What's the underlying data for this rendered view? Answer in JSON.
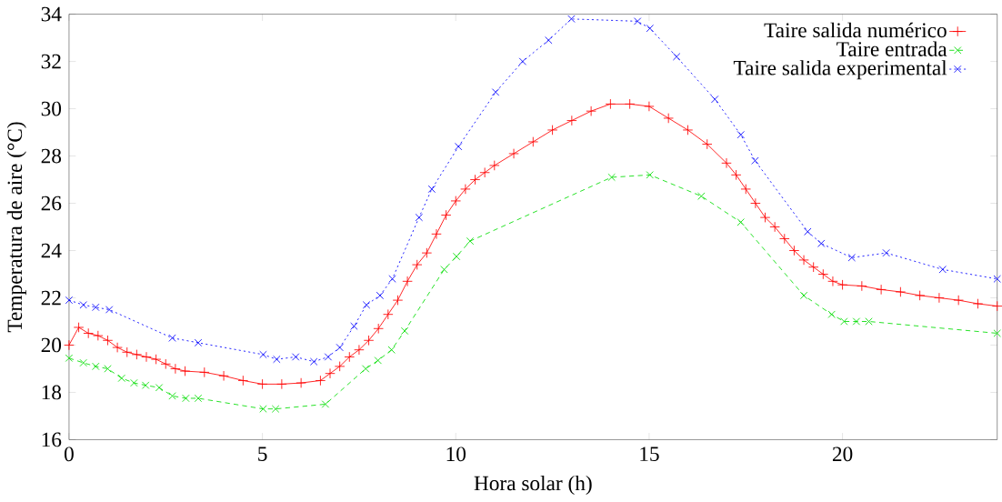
{
  "chart_data": {
    "type": "line",
    "xlabel": "Hora solar (h)",
    "ylabel": "Temperatura de aire (°C)",
    "xlim": [
      0,
      24
    ],
    "ylim": [
      16,
      34
    ],
    "xticks": [
      0,
      5,
      10,
      15,
      20
    ],
    "yticks": [
      16,
      18,
      20,
      22,
      24,
      26,
      28,
      30,
      32,
      34
    ],
    "grid": false,
    "legend": "top right",
    "series": [
      {
        "name": "Taire salida numérico",
        "color": "#ff0000",
        "marker": "plus",
        "line_style": "solid",
        "x": [
          0,
          0.25,
          0.5,
          0.75,
          1.0,
          1.25,
          1.5,
          1.75,
          2.0,
          2.25,
          2.5,
          2.75,
          3.0,
          3.5,
          4.0,
          4.5,
          5.0,
          5.5,
          6.0,
          6.5,
          6.75,
          7.0,
          7.25,
          7.5,
          7.75,
          8.0,
          8.25,
          8.5,
          8.75,
          9.0,
          9.25,
          9.5,
          9.75,
          10.0,
          10.25,
          10.5,
          10.75,
          11.0,
          11.5,
          12.0,
          12.5,
          13.0,
          13.5,
          14.0,
          14.5,
          15.0,
          15.5,
          16.0,
          16.5,
          17.0,
          17.25,
          17.5,
          17.75,
          18.0,
          18.25,
          18.5,
          18.75,
          19.0,
          19.25,
          19.5,
          19.75,
          20.0,
          20.5,
          21.0,
          21.5,
          22.0,
          22.5,
          23.0,
          23.5,
          24.0
        ],
        "values": [
          20.0,
          20.75,
          20.5,
          20.4,
          20.2,
          19.9,
          19.7,
          19.6,
          19.5,
          19.4,
          19.2,
          19.0,
          18.9,
          18.85,
          18.7,
          18.5,
          18.35,
          18.35,
          18.4,
          18.5,
          18.8,
          19.1,
          19.5,
          19.8,
          20.2,
          20.7,
          21.3,
          21.9,
          22.7,
          23.4,
          23.9,
          24.7,
          25.5,
          26.1,
          26.6,
          27.0,
          27.3,
          27.6,
          28.1,
          28.6,
          29.1,
          29.5,
          29.9,
          30.2,
          30.2,
          30.1,
          29.6,
          29.1,
          28.5,
          27.7,
          27.2,
          26.6,
          26.0,
          25.4,
          25.0,
          24.5,
          24.0,
          23.6,
          23.3,
          23.0,
          22.7,
          22.55,
          22.5,
          22.35,
          22.25,
          22.1,
          22.0,
          21.9,
          21.75,
          21.65
        ]
      },
      {
        "name": "Taire entrada",
        "color": "#00dd00",
        "marker": "cross",
        "line_style": "dashed",
        "x": [
          0,
          0.37,
          0.69,
          1.0,
          1.36,
          1.68,
          1.98,
          2.33,
          2.67,
          3.02,
          3.34,
          5.02,
          5.34,
          6.63,
          7.67,
          7.99,
          8.34,
          8.68,
          9.7,
          10.02,
          10.37,
          14.03,
          15.02,
          16.35,
          17.37,
          19.0,
          19.72,
          20.04,
          20.36,
          20.68,
          24.0
        ],
        "values": [
          19.45,
          19.25,
          19.1,
          19.0,
          18.6,
          18.4,
          18.3,
          18.2,
          17.85,
          17.75,
          17.75,
          17.3,
          17.3,
          17.5,
          19.0,
          19.35,
          19.8,
          20.6,
          23.2,
          23.75,
          24.4,
          27.1,
          27.2,
          26.3,
          25.2,
          22.1,
          21.3,
          21.0,
          21.0,
          21.0,
          20.5
        ]
      },
      {
        "name": "Taire salida experimental",
        "color": "#0000ff",
        "marker": "cross",
        "line_style": "dotted",
        "x": [
          0,
          0.37,
          0.69,
          1.04,
          2.67,
          3.34,
          5.02,
          5.37,
          5.86,
          6.33,
          6.7,
          7.0,
          7.37,
          7.69,
          8.04,
          8.36,
          9.05,
          9.38,
          10.07,
          11.03,
          11.73,
          12.4,
          12.99,
          14.7,
          15.02,
          15.71,
          16.7,
          17.37,
          17.74,
          19.1,
          19.45,
          20.24,
          21.13,
          22.59,
          24.0
        ],
        "values": [
          21.9,
          21.7,
          21.6,
          21.5,
          20.3,
          20.1,
          19.6,
          19.4,
          19.5,
          19.3,
          19.5,
          19.9,
          20.8,
          21.7,
          22.1,
          22.8,
          25.4,
          26.6,
          28.4,
          30.7,
          32.0,
          32.9,
          33.8,
          33.7,
          33.4,
          32.2,
          30.4,
          28.9,
          27.8,
          24.8,
          24.3,
          23.7,
          23.9,
          23.2,
          22.8
        ]
      }
    ]
  }
}
